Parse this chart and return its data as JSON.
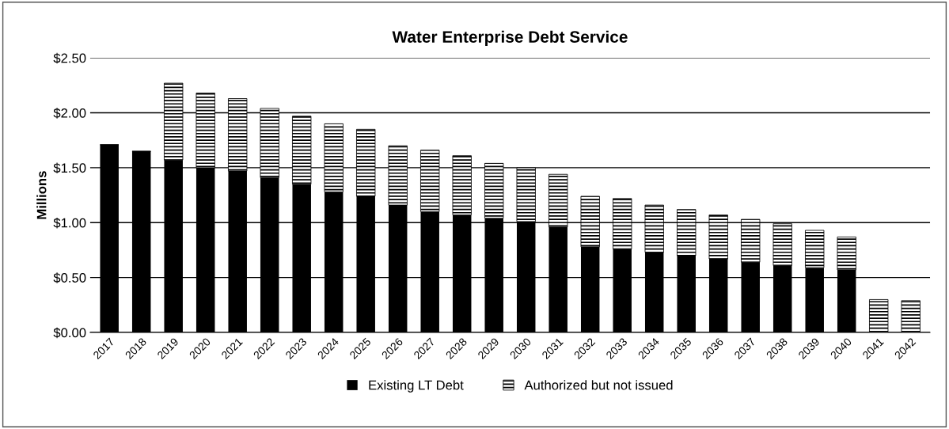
{
  "chart_data": {
    "type": "bar",
    "title": "Water Enterprise Debt Service",
    "ylabel": "Millions",
    "categories": [
      "2017",
      "2018",
      "2019",
      "2020",
      "2021",
      "2022",
      "2023",
      "2024",
      "2025",
      "2026",
      "2027",
      "2028",
      "2029",
      "2030",
      "2031",
      "2032",
      "2033",
      "2034",
      "2035",
      "2036",
      "2037",
      "2038",
      "2039",
      "2040",
      "2041",
      "2042"
    ],
    "stacked": true,
    "series": [
      {
        "name": "Existing LT Debt",
        "color": "#000000",
        "values": [
          1.71,
          1.65,
          1.57,
          1.5,
          1.47,
          1.41,
          1.35,
          1.28,
          1.24,
          1.16,
          1.1,
          1.07,
          1.04,
          1.01,
          0.96,
          0.78,
          0.76,
          0.73,
          0.7,
          0.67,
          0.64,
          0.61,
          0.59,
          0.57,
          0,
          0
        ]
      },
      {
        "name": "Authorized but not issued",
        "color": "#000000",
        "values": [
          0,
          0,
          0.7,
          0.68,
          0.66,
          0.63,
          0.62,
          0.62,
          0.61,
          0.54,
          0.56,
          0.54,
          0.5,
          0.49,
          0.48,
          0.46,
          0.46,
          0.43,
          0.42,
          0.4,
          0.39,
          0.38,
          0.34,
          0.3,
          0.3,
          0.29
        ]
      }
    ],
    "ylim": [
      0,
      2.5
    ],
    "yticks": [
      {
        "value": 0,
        "label": "$0.00"
      },
      {
        "value": 0.5,
        "label": "$0.50"
      },
      {
        "value": 1.0,
        "label": "$1.00"
      },
      {
        "value": 1.5,
        "label": "$1.50"
      },
      {
        "value": 2.0,
        "label": "$2.00"
      },
      {
        "value": 2.5,
        "label": "$2.50"
      }
    ],
    "grid": "y",
    "legend": "bottom"
  }
}
